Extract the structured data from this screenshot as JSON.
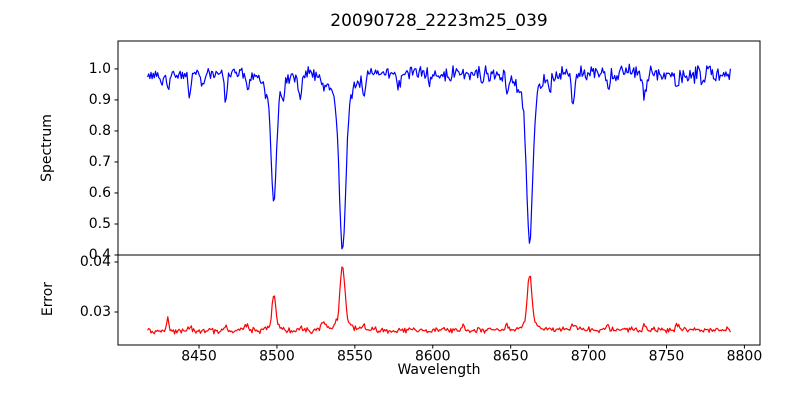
{
  "figure": {
    "title": "20090728_2223m25_039",
    "background_color": "#ffffff",
    "frame_color": "#000000",
    "tick_label_color": "#000000"
  },
  "chart_data": {
    "type": "line",
    "title": "20090728_2223m25_039",
    "xlabel": "Wavelength",
    "grid": false,
    "legend": null,
    "xlim": [
      8398,
      8810
    ],
    "xticks": [
      8450,
      8500,
      8550,
      8600,
      8650,
      8700,
      8750,
      8800
    ],
    "xtick_labels": [
      "8450",
      "8500",
      "8550",
      "8600",
      "8650",
      "8700",
      "8750",
      "8800"
    ],
    "x_data_range": [
      8417,
      8791
    ],
    "n_points": 520,
    "noise_seed": 77,
    "panels": [
      {
        "name": "spectrum",
        "ylabel": "Spectrum",
        "line_color": "#0000ff",
        "ylim": [
          0.4,
          1.09
        ],
        "yticks": [
          1.0,
          0.9,
          0.8,
          0.7,
          0.6,
          0.5,
          0.4
        ],
        "ytick_labels": [
          "1.0",
          "0.9",
          "0.8",
          "0.7",
          "0.6",
          "0.5",
          "0.4"
        ],
        "continuum": 0.985,
        "noise_amplitude": [
          0.013,
          0.023
        ],
        "notable_features": "Ca II triplet absorption lines at 8498, 8542, 8662 with minima ~0.58, ~0.42, ~0.44",
        "absorption_lines": [
          {
            "center": 8426.0,
            "depth": 0.04,
            "sigma": 0.8
          },
          {
            "center": 8430.0,
            "depth": 0.05,
            "sigma": 0.8
          },
          {
            "center": 8444.0,
            "depth": 0.075,
            "sigma": 0.9
          },
          {
            "center": 8452.0,
            "depth": 0.04,
            "sigma": 0.8
          },
          {
            "center": 8467.0,
            "depth": 0.09,
            "sigma": 0.9
          },
          {
            "center": 8481.0,
            "depth": 0.05,
            "sigma": 1.0
          },
          {
            "center": 8493.0,
            "depth": 0.04,
            "sigma": 0.8
          },
          {
            "center": 8498.02,
            "depth": 0.41,
            "sigma": 1.7
          },
          {
            "center": 8504.0,
            "depth": 0.06,
            "sigma": 0.8
          },
          {
            "center": 8515.0,
            "depth": 0.09,
            "sigma": 1.0
          },
          {
            "center": 8530.0,
            "depth": 0.05,
            "sigma": 0.9
          },
          {
            "center": 8542.09,
            "depth": 0.57,
            "sigma": 2.0
          },
          {
            "center": 8556.0,
            "depth": 0.07,
            "sigma": 0.9
          },
          {
            "center": 8578.0,
            "depth": 0.05,
            "sigma": 0.9
          },
          {
            "center": 8598.0,
            "depth": 0.04,
            "sigma": 0.8
          },
          {
            "center": 8611.0,
            "depth": 0.04,
            "sigma": 0.8
          },
          {
            "center": 8632.0,
            "depth": 0.035,
            "sigma": 0.8
          },
          {
            "center": 8648.0,
            "depth": 0.05,
            "sigma": 0.9
          },
          {
            "center": 8662.14,
            "depth": 0.545,
            "sigma": 1.9
          },
          {
            "center": 8675.0,
            "depth": 0.05,
            "sigma": 0.8
          },
          {
            "center": 8690.0,
            "depth": 0.1,
            "sigma": 1.0
          },
          {
            "center": 8713.0,
            "depth": 0.045,
            "sigma": 0.9
          },
          {
            "center": 8736.0,
            "depth": 0.07,
            "sigma": 1.0
          },
          {
            "center": 8757.0,
            "depth": 0.05,
            "sigma": 0.9
          },
          {
            "center": 8773.0,
            "depth": 0.04,
            "sigma": 0.8
          }
        ]
      },
      {
        "name": "error",
        "ylabel": "Error",
        "line_color": "#ff0000",
        "ylim": [
          0.0234,
          0.0414
        ],
        "yticks": [
          0.04,
          0.03
        ],
        "ytick_labels": [
          "0.04",
          "0.03"
        ],
        "baseline": 0.0262,
        "baseline_slope": 0.0003,
        "noise_amplitude": 0.00045,
        "notable_features": "Error peaks at the absorption line positions; maxima ~0.033 (8498), ~0.039 (8542), ~0.037 (8662)",
        "peaks": [
          {
            "center": 8430.0,
            "height": 0.003,
            "sigma": 0.7
          },
          {
            "center": 8444.0,
            "height": 0.0008,
            "sigma": 0.8
          },
          {
            "center": 8467.0,
            "height": 0.001,
            "sigma": 0.8
          },
          {
            "center": 8481.0,
            "height": 0.0013,
            "sigma": 1.2
          },
          {
            "center": 8498.02,
            "height": 0.007,
            "sigma": 1.2
          },
          {
            "center": 8515.0,
            "height": 0.0009,
            "sigma": 0.9
          },
          {
            "center": 8530.0,
            "height": 0.0018,
            "sigma": 1.3
          },
          {
            "center": 8542.09,
            "height": 0.0131,
            "sigma": 1.5
          },
          {
            "center": 8556.0,
            "height": 0.0008,
            "sigma": 0.9
          },
          {
            "center": 8620.0,
            "height": 0.0007,
            "sigma": 0.9
          },
          {
            "center": 8648.0,
            "height": 0.0008,
            "sigma": 0.9
          },
          {
            "center": 8662.14,
            "height": 0.011,
            "sigma": 1.4
          },
          {
            "center": 8690.0,
            "height": 0.0012,
            "sigma": 1.0
          },
          {
            "center": 8712.0,
            "height": 0.0008,
            "sigma": 1.0
          },
          {
            "center": 8736.0,
            "height": 0.0009,
            "sigma": 1.0
          },
          {
            "center": 8757.0,
            "height": 0.0008,
            "sigma": 1.0
          }
        ]
      }
    ]
  }
}
